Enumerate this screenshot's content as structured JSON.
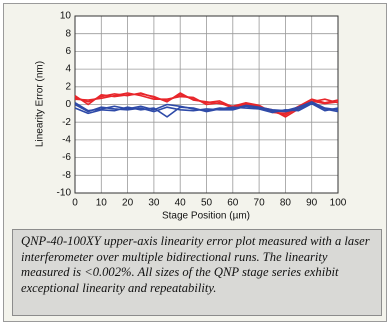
{
  "chart_data": {
    "type": "line",
    "xlabel": "Stage Position (µm)",
    "ylabel": "Linearity Error (nm)",
    "x": [
      0,
      5,
      10,
      15,
      20,
      25,
      30,
      35,
      40,
      45,
      50,
      55,
      60,
      65,
      70,
      75,
      80,
      85,
      90,
      95,
      100
    ],
    "series": [
      {
        "color": "#e8262b",
        "values": [
          0.8,
          0.3,
          0.9,
          1.2,
          1.0,
          1.3,
          0.8,
          0.4,
          1.1,
          0.6,
          0.2,
          0.4,
          -0.3,
          0.1,
          -0.2,
          -0.8,
          -1.2,
          -0.3,
          0.4,
          0.1,
          0.3
        ]
      },
      {
        "color": "#e8262b",
        "values": [
          0.6,
          0.5,
          0.7,
          1.0,
          1.3,
          1.0,
          0.6,
          0.6,
          0.9,
          0.8,
          0.0,
          0.2,
          -0.4,
          0.0,
          -0.3,
          -0.6,
          -1.4,
          -0.5,
          0.3,
          0.6,
          0.2
        ]
      },
      {
        "color": "#e8262b",
        "values": [
          1.0,
          0.0,
          1.1,
          0.9,
          1.1,
          1.2,
          0.9,
          0.3,
          1.3,
          0.5,
          0.3,
          0.1,
          -0.2,
          0.2,
          -0.1,
          -0.9,
          -1.0,
          -0.2,
          0.6,
          0.2,
          0.5
        ]
      },
      {
        "color": "#2e4aa8",
        "values": [
          0.2,
          -0.7,
          -0.5,
          -0.2,
          -0.5,
          -0.2,
          -0.6,
          0.0,
          -0.2,
          -0.5,
          -0.7,
          -0.4,
          -0.5,
          -0.1,
          -0.3,
          -0.6,
          -0.7,
          -0.3,
          0.3,
          -0.4,
          -0.6
        ]
      },
      {
        "color": "#2e4aa8",
        "values": [
          -0.4,
          -1.0,
          -0.6,
          -0.7,
          -0.3,
          -0.6,
          -0.4,
          -1.4,
          -0.3,
          -0.4,
          -0.8,
          -0.5,
          -0.3,
          -0.4,
          -0.5,
          -0.9,
          -0.6,
          -0.7,
          0.1,
          -0.7,
          -0.4
        ]
      },
      {
        "color": "#2e4aa8",
        "values": [
          0.0,
          -0.8,
          -0.3,
          -0.5,
          -0.6,
          -0.4,
          -0.8,
          -0.3,
          -0.6,
          -0.7,
          -0.5,
          -0.6,
          -0.6,
          -0.2,
          -0.4,
          -0.7,
          -0.8,
          -0.5,
          0.2,
          -0.5,
          -0.8
        ]
      }
    ],
    "xlim": [
      0,
      100
    ],
    "xticks": [
      0,
      10,
      20,
      30,
      40,
      50,
      60,
      70,
      80,
      90,
      100
    ],
    "ylim": [
      -10,
      10
    ],
    "yticks": [
      -10,
      -8,
      -6,
      -4,
      -2,
      0,
      2,
      4,
      6,
      8,
      10
    ],
    "grid": true,
    "caption": "QNP-40-100XY upper-axis linearity error plot measured with a laser interferometer over multiple bidirectional runs. The linearity measured is <0.002%. All sizes of the QNP stage series exhibit exceptional linearity and repeatability."
  }
}
